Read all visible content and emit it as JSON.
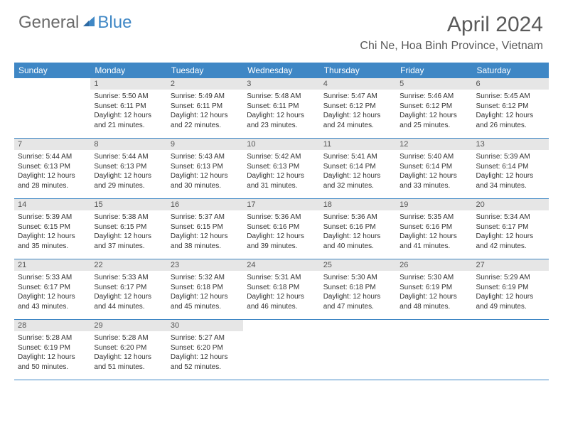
{
  "logo": {
    "general": "General",
    "blue": "Blue"
  },
  "title": "April 2024",
  "location": "Chi Ne, Hoa Binh Province, Vietnam",
  "colors": {
    "header_blue": "#3f87c5",
    "gray_bar": "#e6e6e6",
    "text": "#333333",
    "logo_gray": "#6a6a6a"
  },
  "weekdays": [
    "Sunday",
    "Monday",
    "Tuesday",
    "Wednesday",
    "Thursday",
    "Friday",
    "Saturday"
  ],
  "weeks": [
    [
      {
        "empty": true
      },
      {
        "day": "1",
        "sunrise": "Sunrise: 5:50 AM",
        "sunset": "Sunset: 6:11 PM",
        "daylight1": "Daylight: 12 hours",
        "daylight2": "and 21 minutes."
      },
      {
        "day": "2",
        "sunrise": "Sunrise: 5:49 AM",
        "sunset": "Sunset: 6:11 PM",
        "daylight1": "Daylight: 12 hours",
        "daylight2": "and 22 minutes."
      },
      {
        "day": "3",
        "sunrise": "Sunrise: 5:48 AM",
        "sunset": "Sunset: 6:11 PM",
        "daylight1": "Daylight: 12 hours",
        "daylight2": "and 23 minutes."
      },
      {
        "day": "4",
        "sunrise": "Sunrise: 5:47 AM",
        "sunset": "Sunset: 6:12 PM",
        "daylight1": "Daylight: 12 hours",
        "daylight2": "and 24 minutes."
      },
      {
        "day": "5",
        "sunrise": "Sunrise: 5:46 AM",
        "sunset": "Sunset: 6:12 PM",
        "daylight1": "Daylight: 12 hours",
        "daylight2": "and 25 minutes."
      },
      {
        "day": "6",
        "sunrise": "Sunrise: 5:45 AM",
        "sunset": "Sunset: 6:12 PM",
        "daylight1": "Daylight: 12 hours",
        "daylight2": "and 26 minutes."
      }
    ],
    [
      {
        "day": "7",
        "sunrise": "Sunrise: 5:44 AM",
        "sunset": "Sunset: 6:13 PM",
        "daylight1": "Daylight: 12 hours",
        "daylight2": "and 28 minutes."
      },
      {
        "day": "8",
        "sunrise": "Sunrise: 5:44 AM",
        "sunset": "Sunset: 6:13 PM",
        "daylight1": "Daylight: 12 hours",
        "daylight2": "and 29 minutes."
      },
      {
        "day": "9",
        "sunrise": "Sunrise: 5:43 AM",
        "sunset": "Sunset: 6:13 PM",
        "daylight1": "Daylight: 12 hours",
        "daylight2": "and 30 minutes."
      },
      {
        "day": "10",
        "sunrise": "Sunrise: 5:42 AM",
        "sunset": "Sunset: 6:13 PM",
        "daylight1": "Daylight: 12 hours",
        "daylight2": "and 31 minutes."
      },
      {
        "day": "11",
        "sunrise": "Sunrise: 5:41 AM",
        "sunset": "Sunset: 6:14 PM",
        "daylight1": "Daylight: 12 hours",
        "daylight2": "and 32 minutes."
      },
      {
        "day": "12",
        "sunrise": "Sunrise: 5:40 AM",
        "sunset": "Sunset: 6:14 PM",
        "daylight1": "Daylight: 12 hours",
        "daylight2": "and 33 minutes."
      },
      {
        "day": "13",
        "sunrise": "Sunrise: 5:39 AM",
        "sunset": "Sunset: 6:14 PM",
        "daylight1": "Daylight: 12 hours",
        "daylight2": "and 34 minutes."
      }
    ],
    [
      {
        "day": "14",
        "sunrise": "Sunrise: 5:39 AM",
        "sunset": "Sunset: 6:15 PM",
        "daylight1": "Daylight: 12 hours",
        "daylight2": "and 35 minutes."
      },
      {
        "day": "15",
        "sunrise": "Sunrise: 5:38 AM",
        "sunset": "Sunset: 6:15 PM",
        "daylight1": "Daylight: 12 hours",
        "daylight2": "and 37 minutes."
      },
      {
        "day": "16",
        "sunrise": "Sunrise: 5:37 AM",
        "sunset": "Sunset: 6:15 PM",
        "daylight1": "Daylight: 12 hours",
        "daylight2": "and 38 minutes."
      },
      {
        "day": "17",
        "sunrise": "Sunrise: 5:36 AM",
        "sunset": "Sunset: 6:16 PM",
        "daylight1": "Daylight: 12 hours",
        "daylight2": "and 39 minutes."
      },
      {
        "day": "18",
        "sunrise": "Sunrise: 5:36 AM",
        "sunset": "Sunset: 6:16 PM",
        "daylight1": "Daylight: 12 hours",
        "daylight2": "and 40 minutes."
      },
      {
        "day": "19",
        "sunrise": "Sunrise: 5:35 AM",
        "sunset": "Sunset: 6:16 PM",
        "daylight1": "Daylight: 12 hours",
        "daylight2": "and 41 minutes."
      },
      {
        "day": "20",
        "sunrise": "Sunrise: 5:34 AM",
        "sunset": "Sunset: 6:17 PM",
        "daylight1": "Daylight: 12 hours",
        "daylight2": "and 42 minutes."
      }
    ],
    [
      {
        "day": "21",
        "sunrise": "Sunrise: 5:33 AM",
        "sunset": "Sunset: 6:17 PM",
        "daylight1": "Daylight: 12 hours",
        "daylight2": "and 43 minutes."
      },
      {
        "day": "22",
        "sunrise": "Sunrise: 5:33 AM",
        "sunset": "Sunset: 6:17 PM",
        "daylight1": "Daylight: 12 hours",
        "daylight2": "and 44 minutes."
      },
      {
        "day": "23",
        "sunrise": "Sunrise: 5:32 AM",
        "sunset": "Sunset: 6:18 PM",
        "daylight1": "Daylight: 12 hours",
        "daylight2": "and 45 minutes."
      },
      {
        "day": "24",
        "sunrise": "Sunrise: 5:31 AM",
        "sunset": "Sunset: 6:18 PM",
        "daylight1": "Daylight: 12 hours",
        "daylight2": "and 46 minutes."
      },
      {
        "day": "25",
        "sunrise": "Sunrise: 5:30 AM",
        "sunset": "Sunset: 6:18 PM",
        "daylight1": "Daylight: 12 hours",
        "daylight2": "and 47 minutes."
      },
      {
        "day": "26",
        "sunrise": "Sunrise: 5:30 AM",
        "sunset": "Sunset: 6:19 PM",
        "daylight1": "Daylight: 12 hours",
        "daylight2": "and 48 minutes."
      },
      {
        "day": "27",
        "sunrise": "Sunrise: 5:29 AM",
        "sunset": "Sunset: 6:19 PM",
        "daylight1": "Daylight: 12 hours",
        "daylight2": "and 49 minutes."
      }
    ],
    [
      {
        "day": "28",
        "sunrise": "Sunrise: 5:28 AM",
        "sunset": "Sunset: 6:19 PM",
        "daylight1": "Daylight: 12 hours",
        "daylight2": "and 50 minutes."
      },
      {
        "day": "29",
        "sunrise": "Sunrise: 5:28 AM",
        "sunset": "Sunset: 6:20 PM",
        "daylight1": "Daylight: 12 hours",
        "daylight2": "and 51 minutes."
      },
      {
        "day": "30",
        "sunrise": "Sunrise: 5:27 AM",
        "sunset": "Sunset: 6:20 PM",
        "daylight1": "Daylight: 12 hours",
        "daylight2": "and 52 minutes."
      },
      {
        "empty": true
      },
      {
        "empty": true
      },
      {
        "empty": true
      },
      {
        "empty": true
      }
    ]
  ]
}
